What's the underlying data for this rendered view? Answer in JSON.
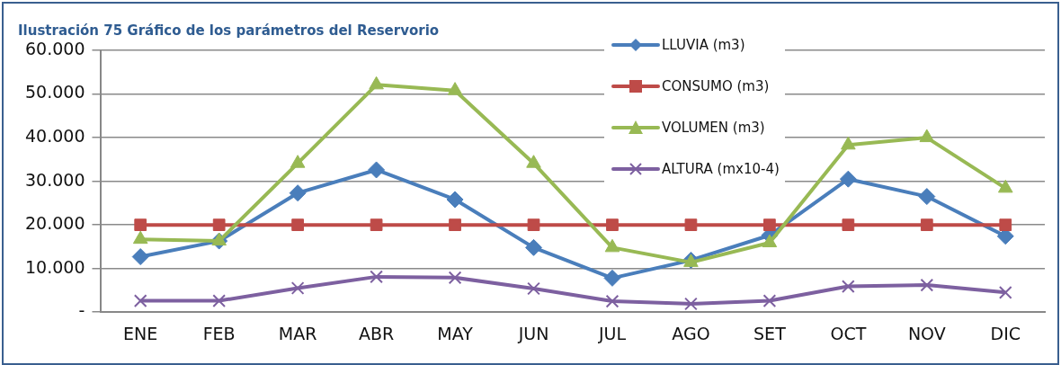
{
  "chart_data": {
    "type": "line",
    "title": "Ilustración 75 Gráfico de los parámetros del Reservorio",
    "categories": [
      "ENE",
      "FEB",
      "MAR",
      "ABR",
      "MAY",
      "JUN",
      "JUL",
      "AGO",
      "SET",
      "OCT",
      "NOV",
      "DIC"
    ],
    "series": [
      {
        "name": "LLUVIA (m3)",
        "color": "#4a7ebb",
        "marker": "diamond",
        "values": [
          12700,
          16300,
          27300,
          32600,
          25800,
          14800,
          7800,
          11900,
          17600,
          30500,
          26500,
          17400
        ]
      },
      {
        "name": "CONSUMO (m3)",
        "color": "#be4b48",
        "marker": "square",
        "values": [
          20000,
          20000,
          20000,
          20000,
          20000,
          20000,
          20000,
          20000,
          20000,
          20000,
          20000,
          20000
        ]
      },
      {
        "name": "VOLUMEN (m3)",
        "color": "#98b954",
        "marker": "triangle",
        "values": [
          16700,
          16300,
          34100,
          52100,
          50800,
          34100,
          14800,
          11400,
          15900,
          38300,
          40000,
          28400
        ]
      },
      {
        "name": "ALTURA (mx10-4)",
        "color": "#7d60a0",
        "marker": "cross",
        "values": [
          2600,
          2600,
          5500,
          8100,
          7900,
          5400,
          2500,
          1900,
          2600,
          5900,
          6200,
          4500
        ]
      }
    ],
    "ylim": [
      0,
      60000
    ],
    "yticks": [
      {
        "value": 0,
        "label": "-"
      },
      {
        "value": 10000,
        "label": "10.000"
      },
      {
        "value": 20000,
        "label": "20.000"
      },
      {
        "value": 30000,
        "label": "30.000"
      },
      {
        "value": 40000,
        "label": "40.000"
      },
      {
        "value": 50000,
        "label": "50.000"
      },
      {
        "value": 60000,
        "label": "60.000"
      }
    ],
    "grid": "y",
    "legend": "top right",
    "line_style": "solid"
  }
}
